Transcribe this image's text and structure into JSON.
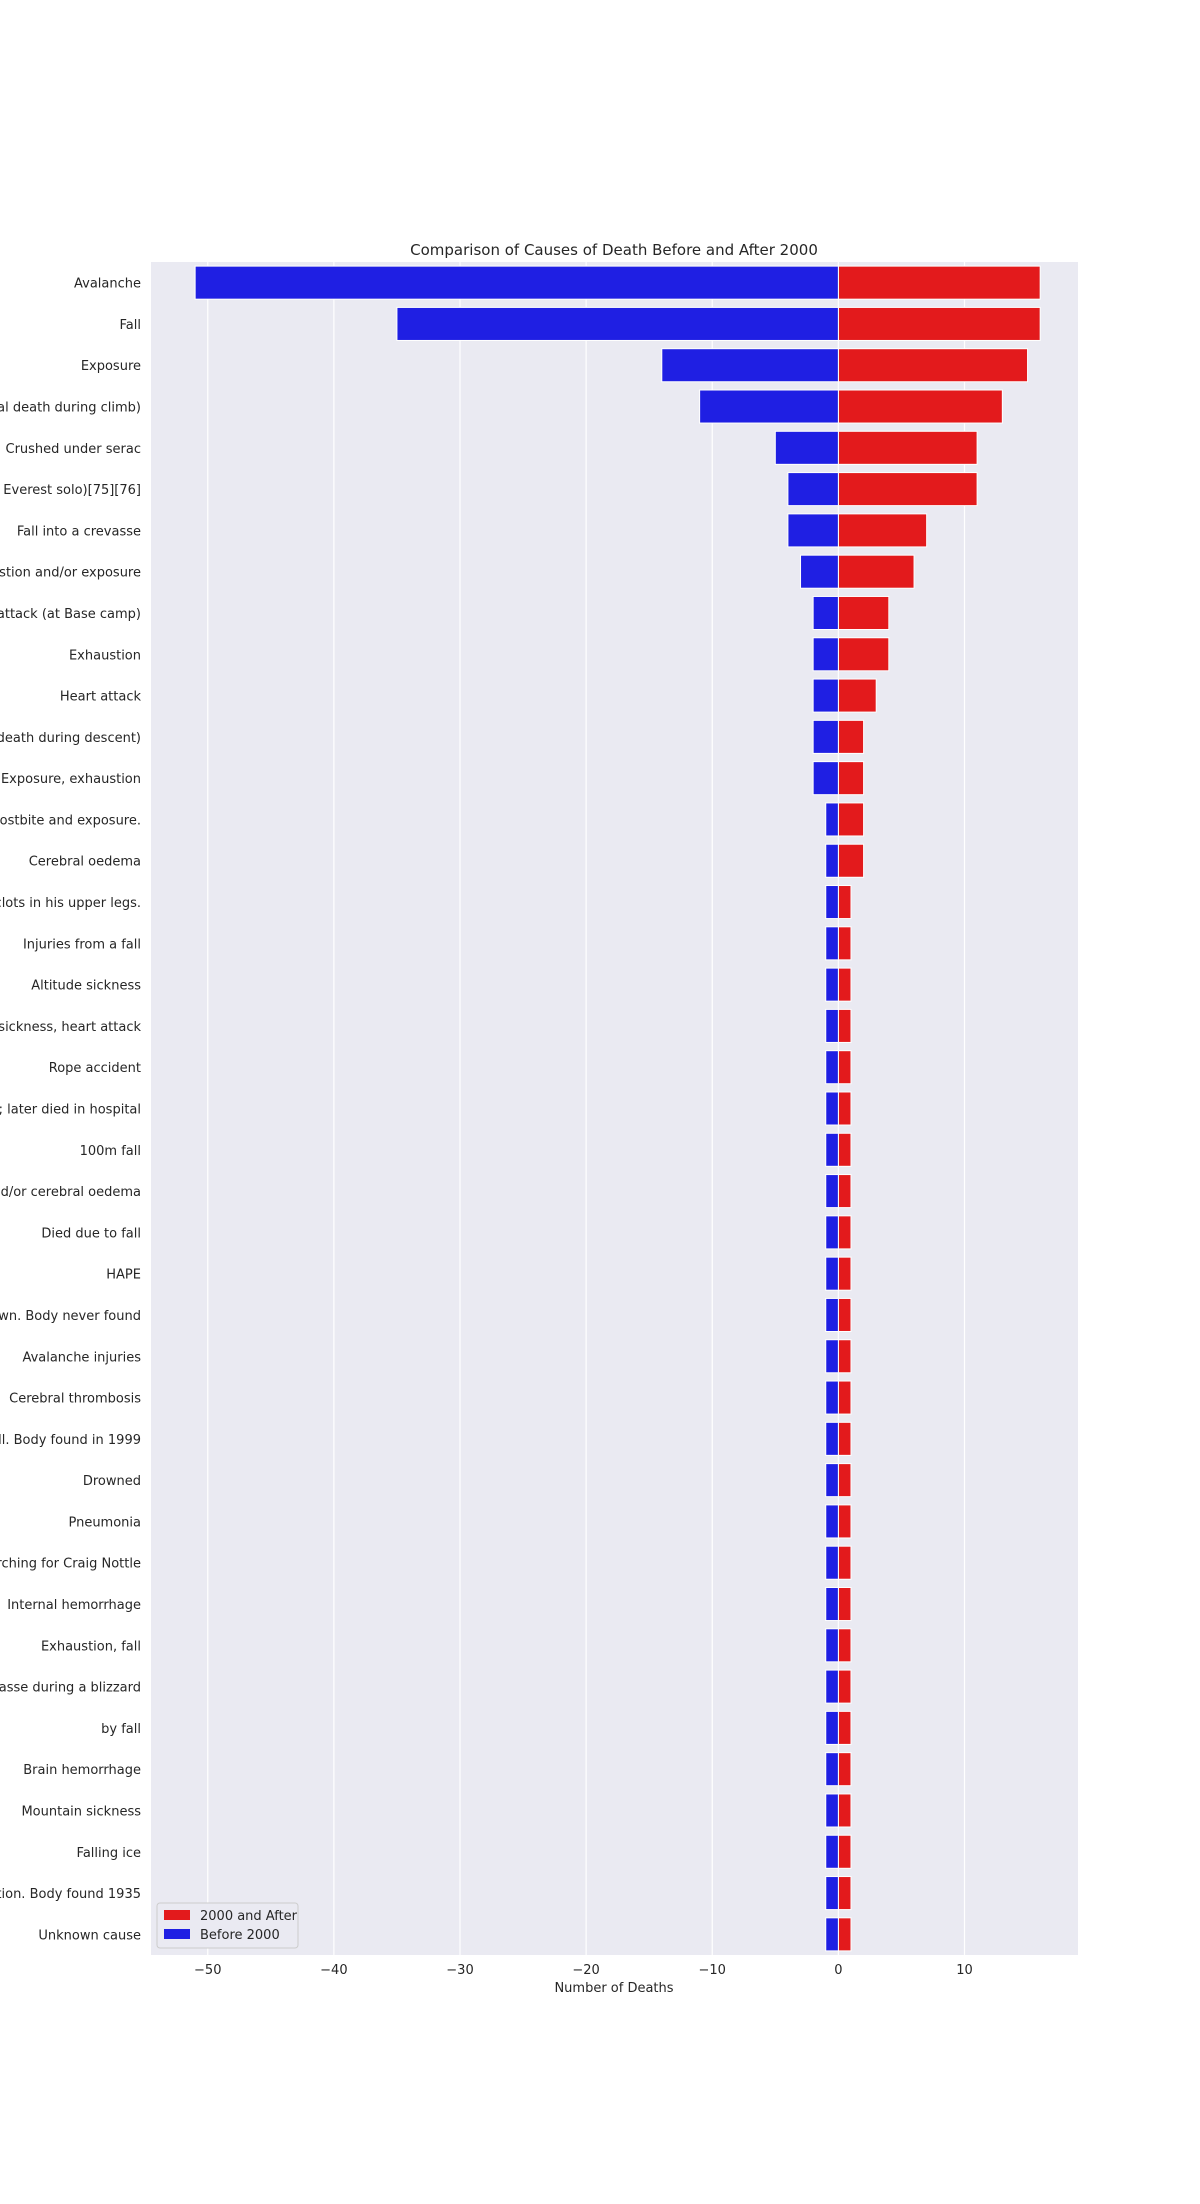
{
  "chart_data": {
    "type": "bar",
    "orientation": "horizontal",
    "title": "Comparison of Causes of Death Before and After 2000",
    "xlabel": "Number of Deaths",
    "ylabel": "",
    "xlim": [
      -54.5,
      19
    ],
    "xticks": [
      -50,
      -40,
      -30,
      -20,
      -10,
      0,
      10
    ],
    "xtick_labels": [
      "−50",
      "−40",
      "−30",
      "−20",
      "−10",
      "0",
      "10"
    ],
    "grid": true,
    "legend_position": "lower-left",
    "categories": [
      "Avalanche",
      "Fall",
      "Exposure",
      "ntal death during climb)",
      "Crushed under serac",
      "d Everest solo)[75][76]",
      "Fall into a crevasse",
      "ustion and/or exposure",
      "t attack (at Base camp)",
      "Exhaustion",
      "Heart attack",
      "l death during descent)",
      "Exposure, exhaustion",
      "frostbite and exposure.",
      "Cerebral oedema",
      "clots in his upper legs.",
      "Injuries from a fall",
      "Altitude sickness",
      "e sickness, heart attack",
      "Rope accident",
      "6; later died in hospital",
      "100m fall",
      "nd/or cerebral oedema",
      "Died due to fall",
      "HAPE",
      "own. Body never found",
      "Avalanche injuries",
      "Cerebral thrombosis",
      "all. Body found in 1999",
      "Drowned",
      "Pneumonia",
      "arching for Craig Nottle",
      "Internal hemorrhage",
      "Exhaustion, fall",
      "vasse during a blizzard",
      "by fall",
      "Brain hemorrhage",
      "Mountain sickness",
      "Falling ice",
      "ation. Body found 1935",
      "Unknown cause"
    ],
    "series": [
      {
        "name": "2000 and After",
        "color": "#e31a1c",
        "values": [
          16,
          16,
          15,
          13,
          11,
          11,
          7,
          6,
          4,
          4,
          3,
          2,
          2,
          2,
          2,
          1,
          1,
          1,
          1,
          1,
          1,
          1,
          1,
          1,
          1,
          1,
          1,
          1,
          1,
          1,
          1,
          1,
          1,
          1,
          1,
          1,
          1,
          1,
          1,
          1,
          1
        ]
      },
      {
        "name": "Before 2000",
        "color": "#1f1fe3",
        "values": [
          -51,
          -35,
          -14,
          -11,
          -5,
          -4,
          -4,
          -3,
          -2,
          -2,
          -2,
          -2,
          -2,
          -1,
          -1,
          -1,
          -1,
          -1,
          -1,
          -1,
          -1,
          -1,
          -1,
          -1,
          -1,
          -1,
          -1,
          -1,
          -1,
          -1,
          -1,
          -1,
          -1,
          -1,
          -1,
          -1,
          -1,
          -1,
          -1,
          -1,
          -1
        ]
      }
    ]
  }
}
